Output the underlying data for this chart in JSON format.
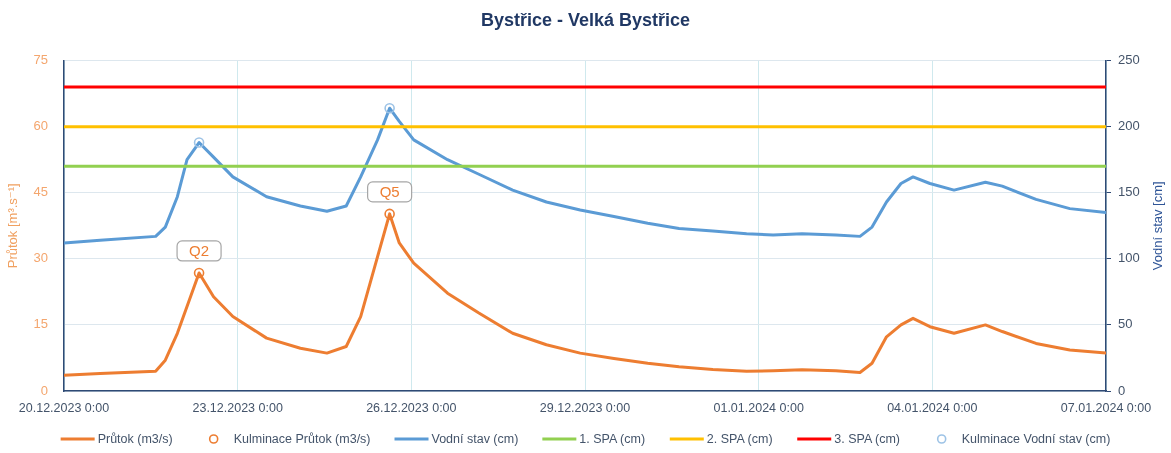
{
  "chart_data": {
    "type": "line",
    "title": "Bystřice - Velká Bystřice",
    "ylabel": "Průtok [m³.s⁻¹]",
    "y2label": "Vodní stav [cm]",
    "x": [
      "2023-12-20T00:00",
      "2023-12-20T15:00",
      "2023-12-21T14:00",
      "2023-12-21T18:00",
      "2023-12-21T23:00",
      "2023-12-22T03:00",
      "2023-12-22T08:00",
      "2023-12-22T14:00",
      "2023-12-22T22:00",
      "2023-12-23T12:00",
      "2023-12-24T02:00",
      "2023-12-24T13:00",
      "2023-12-24T21:00",
      "2023-12-25T03:00",
      "2023-12-25T10:00",
      "2023-12-25T15:00",
      "2023-12-25T19:00",
      "2023-12-26T01:00",
      "2023-12-26T15:00",
      "2023-12-27T04:00",
      "2023-12-27T18:00",
      "2023-12-28T08:00",
      "2023-12-28T22:00",
      "2023-12-29T12:00",
      "2023-12-30T02:00",
      "2023-12-30T15:00",
      "2023-12-31T05:00",
      "2023-12-31T19:00",
      "2024-01-01T06:00",
      "2024-01-01T18:00",
      "2024-01-02T08:00",
      "2024-01-02T18:00",
      "2024-01-02T23:00",
      "2024-01-03T05:00",
      "2024-01-03T11:00",
      "2024-01-03T16:00",
      "2024-01-03T23:00",
      "2024-01-04T09:00",
      "2024-01-04T22:00",
      "2024-01-05T05:00",
      "2024-01-05T19:00",
      "2024-01-06T09:00",
      "2024-01-07T00:00"
    ],
    "xlim": [
      "2023-12-20",
      "2024-01-07"
    ],
    "xticks": [
      {
        "value": "2023-12-20",
        "label": "20.12.2023 0:00"
      },
      {
        "value": "2023-12-23",
        "label": "23.12.2023 0:00"
      },
      {
        "value": "2023-12-26",
        "label": "26.12.2023 0:00"
      },
      {
        "value": "2023-12-29",
        "label": "29.12.2023 0:00"
      },
      {
        "value": "2024-01-01",
        "label": "01.01.2024 0:00"
      },
      {
        "value": "2024-01-04",
        "label": "04.01.2024 0:00"
      },
      {
        "value": "2024-01-07",
        "label": "07.01.2024 0:00"
      }
    ],
    "ylim": [
      0,
      75
    ],
    "yticks": [
      0,
      15,
      30,
      45,
      60,
      75
    ],
    "y2lim": [
      0,
      250
    ],
    "y2ticks": [
      0,
      50,
      100,
      150,
      200,
      250
    ],
    "grid": true,
    "legend": "bottom",
    "series": [
      {
        "name": "Průtok (m3/s)",
        "color": "#ed7d31",
        "values": [
          3.6,
          4.0,
          4.5,
          7.0,
          13.1,
          19.2,
          26.8,
          21.4,
          16.9,
          12.0,
          9.7,
          8.6,
          10.1,
          16.9,
          30.5,
          40.2,
          33.6,
          29.0,
          22.2,
          17.7,
          13.1,
          10.5,
          8.6,
          7.4,
          6.3,
          5.5,
          4.9,
          4.5,
          4.6,
          4.8,
          4.6,
          4.2,
          6.3,
          12.3,
          15.0,
          16.5,
          14.6,
          13.1,
          15.0,
          13.5,
          10.8,
          9.3,
          8.6
        ]
      },
      {
        "name": "Kulminace Průtok (m3/s)",
        "type": "scatter",
        "marker": "circle",
        "color": "#ed7d31",
        "x": [
          "2023-12-22T08:00",
          "2023-12-25T15:00"
        ],
        "values": [
          26.8,
          40.2
        ]
      },
      {
        "name": "Vodní stav (cm)",
        "axis": "y2",
        "color": "#5b9bd5",
        "values": [
          112,
          114,
          117,
          124,
          147,
          175,
          188,
          177,
          162,
          147,
          140,
          136,
          140,
          162,
          190,
          214,
          204,
          190,
          175,
          164,
          152,
          143,
          137,
          132,
          127,
          123,
          121,
          119,
          118,
          119,
          118,
          117,
          124,
          143,
          157,
          162,
          157,
          152,
          158,
          155,
          145,
          138,
          135
        ]
      },
      {
        "name": "1. SPA (cm)",
        "axis": "y2",
        "color": "#92d050",
        "x": [
          "2023-12-20",
          "2024-01-07"
        ],
        "values": [
          170,
          170
        ]
      },
      {
        "name": "2. SPA (cm)",
        "axis": "y2",
        "color": "#ffc000",
        "x": [
          "2023-12-20",
          "2024-01-07"
        ],
        "values": [
          200,
          200
        ]
      },
      {
        "name": "3. SPA (cm)",
        "axis": "y2",
        "color": "#ff0000",
        "x": [
          "2023-12-20",
          "2024-01-07"
        ],
        "values": [
          230,
          230
        ]
      },
      {
        "name": "Kulminace Vodní stav (cm)",
        "type": "scatter",
        "marker": "circle",
        "axis": "y2",
        "color": "#9dc3e6",
        "x": [
          "2023-12-22T08:00",
          "2023-12-25T15:00"
        ],
        "values": [
          188,
          214
        ]
      }
    ],
    "annotations": [
      {
        "text": "Q2",
        "x": "2023-12-22T08:00",
        "y": 26.8
      },
      {
        "text": "Q5",
        "x": "2023-12-25T15:00",
        "y": 40.2
      }
    ]
  }
}
